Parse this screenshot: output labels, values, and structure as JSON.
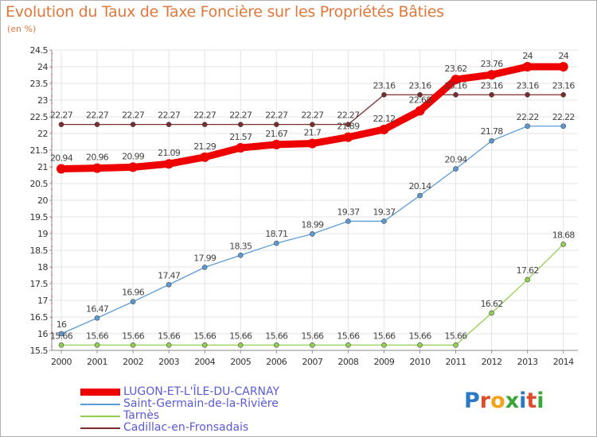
{
  "header": {
    "title": "Evolution du Taux de Taxe Foncière sur les Propriétés Bâties",
    "unit": "(en %)"
  },
  "logo": {
    "text": "Proxiti",
    "letters": [
      {
        "ch": "P",
        "color": "#2b78c5"
      },
      {
        "ch": "r",
        "color": "#e04b2a"
      },
      {
        "ch": "o",
        "color": "#f2a31b"
      },
      {
        "ch": "x",
        "color": "#3aa63a"
      },
      {
        "ch": "i",
        "color": "#2b78c5"
      },
      {
        "ch": "t",
        "color": "#e04b2a"
      },
      {
        "ch": "i",
        "color": "#3aa63a"
      }
    ]
  },
  "chart_data": {
    "type": "line",
    "x": [
      "2000",
      "2001",
      "2002",
      "2003",
      "2004",
      "2005",
      "2006",
      "2007",
      "2008",
      "2009",
      "2010",
      "2011",
      "2012",
      "2013",
      "2014"
    ],
    "ylim": [
      15.5,
      24.5
    ],
    "yticks": [
      "15.5",
      "16",
      "16.5",
      "17",
      "17.5",
      "18",
      "18.5",
      "19",
      "19.5",
      "20",
      "20.5",
      "21",
      "21.5",
      "22",
      "22.5",
      "23",
      "23.5",
      "24",
      "24.5"
    ],
    "grid": true,
    "legend_position": "bottom-left",
    "series": [
      {
        "name": "LUGON-ET-L'ÎLE-DU-CARNAY",
        "color": "#ee0000",
        "values": [
          20.94,
          20.96,
          20.99,
          21.09,
          21.29,
          21.57,
          21.67,
          21.7,
          21.89,
          22.12,
          22.68,
          23.62,
          23.76,
          24,
          24
        ],
        "labels": [
          "20.94",
          "20.96",
          "20.99",
          "21.09",
          "21.29",
          "21.57",
          "21.67",
          "21.7",
          "21.89",
          "22.12",
          "22.68",
          "23.62",
          "23.76",
          "24",
          "24"
        ]
      },
      {
        "name": "Saint-Germain-de-la-Rivière",
        "color": "#5b9bd5",
        "values": [
          16,
          16.47,
          16.96,
          17.47,
          17.99,
          18.35,
          18.71,
          18.99,
          19.37,
          19.37,
          20.14,
          20.94,
          21.78,
          22.22,
          22.22
        ],
        "labels": [
          "16",
          "16.47",
          "16.96",
          "17.47",
          "17.99",
          "18.35",
          "18.71",
          "18.99",
          "19.37",
          "19.37",
          "20.14",
          "20.94",
          "21.78",
          "22.22",
          "22.22"
        ]
      },
      {
        "name": "Tarnès",
        "color": "#92d050",
        "values": [
          15.66,
          15.66,
          15.66,
          15.66,
          15.66,
          15.66,
          15.66,
          15.66,
          15.66,
          15.66,
          15.66,
          15.66,
          16.62,
          17.62,
          18.68
        ],
        "labels": [
          "15.66",
          "15.66",
          "15.66",
          "15.66",
          "15.66",
          "15.66",
          "15.66",
          "15.66",
          "15.66",
          "15.66",
          "15.66",
          "15.66",
          "16.62",
          "17.62",
          "18.68"
        ]
      },
      {
        "name": "Cadillac-en-Fronsadais",
        "color": "#7b2c2c",
        "values": [
          22.27,
          22.27,
          22.27,
          22.27,
          22.27,
          22.27,
          22.27,
          22.27,
          22.27,
          23.16,
          23.16,
          23.16,
          23.16,
          23.16,
          23.16
        ],
        "labels": [
          "22.27",
          "22.27",
          "22.27",
          "22.27",
          "22.27",
          "22.27",
          "22.27",
          "22.27",
          "22.27",
          "23.16",
          "23.16",
          "23.16",
          "23.16",
          "23.16",
          "23.16"
        ]
      }
    ]
  }
}
